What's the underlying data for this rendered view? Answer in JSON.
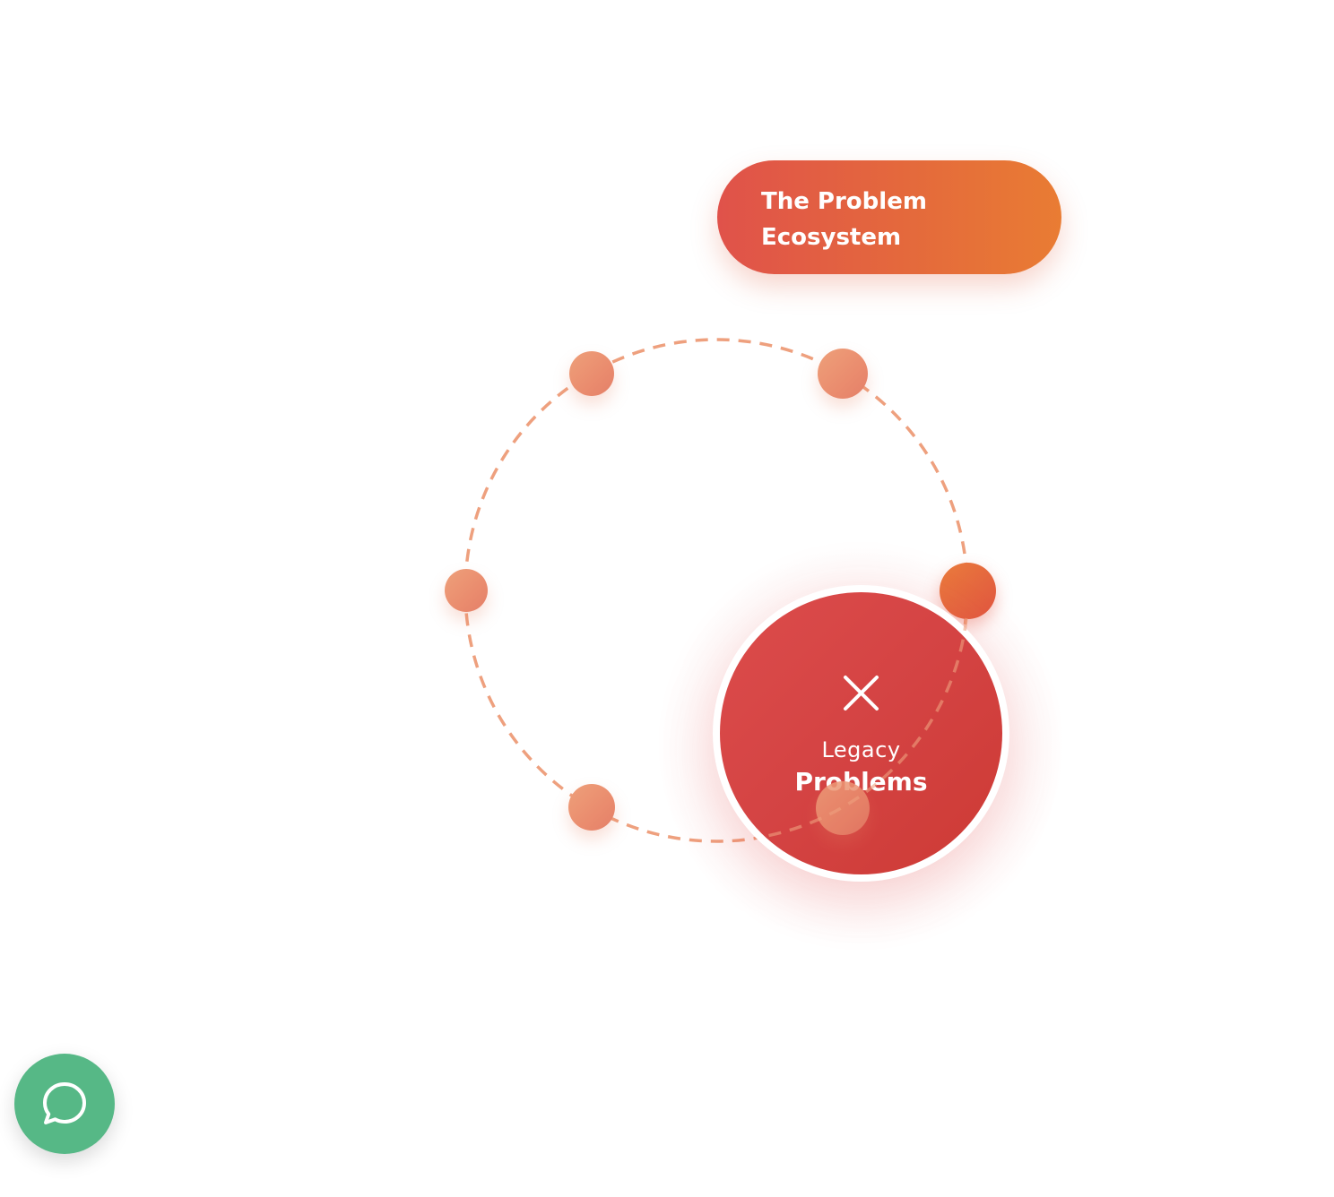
{
  "title": {
    "line1": "The Problem",
    "line2": "Ecosystem"
  },
  "hub": {
    "icon": "close-icon",
    "line1": "Legacy",
    "line2": "Problems"
  },
  "orbit": {
    "node_count": 6,
    "active_node_index": 1
  },
  "chat": {
    "icon": "chat-bubble-icon"
  },
  "colors": {
    "title_gradient_start": "#e0524a",
    "title_gradient_end": "#e97c33",
    "hub_red": "#d44343",
    "node_orange": "#ea8c6e",
    "orbit_dash": "#eea07e",
    "chat_green": "#56b886"
  }
}
